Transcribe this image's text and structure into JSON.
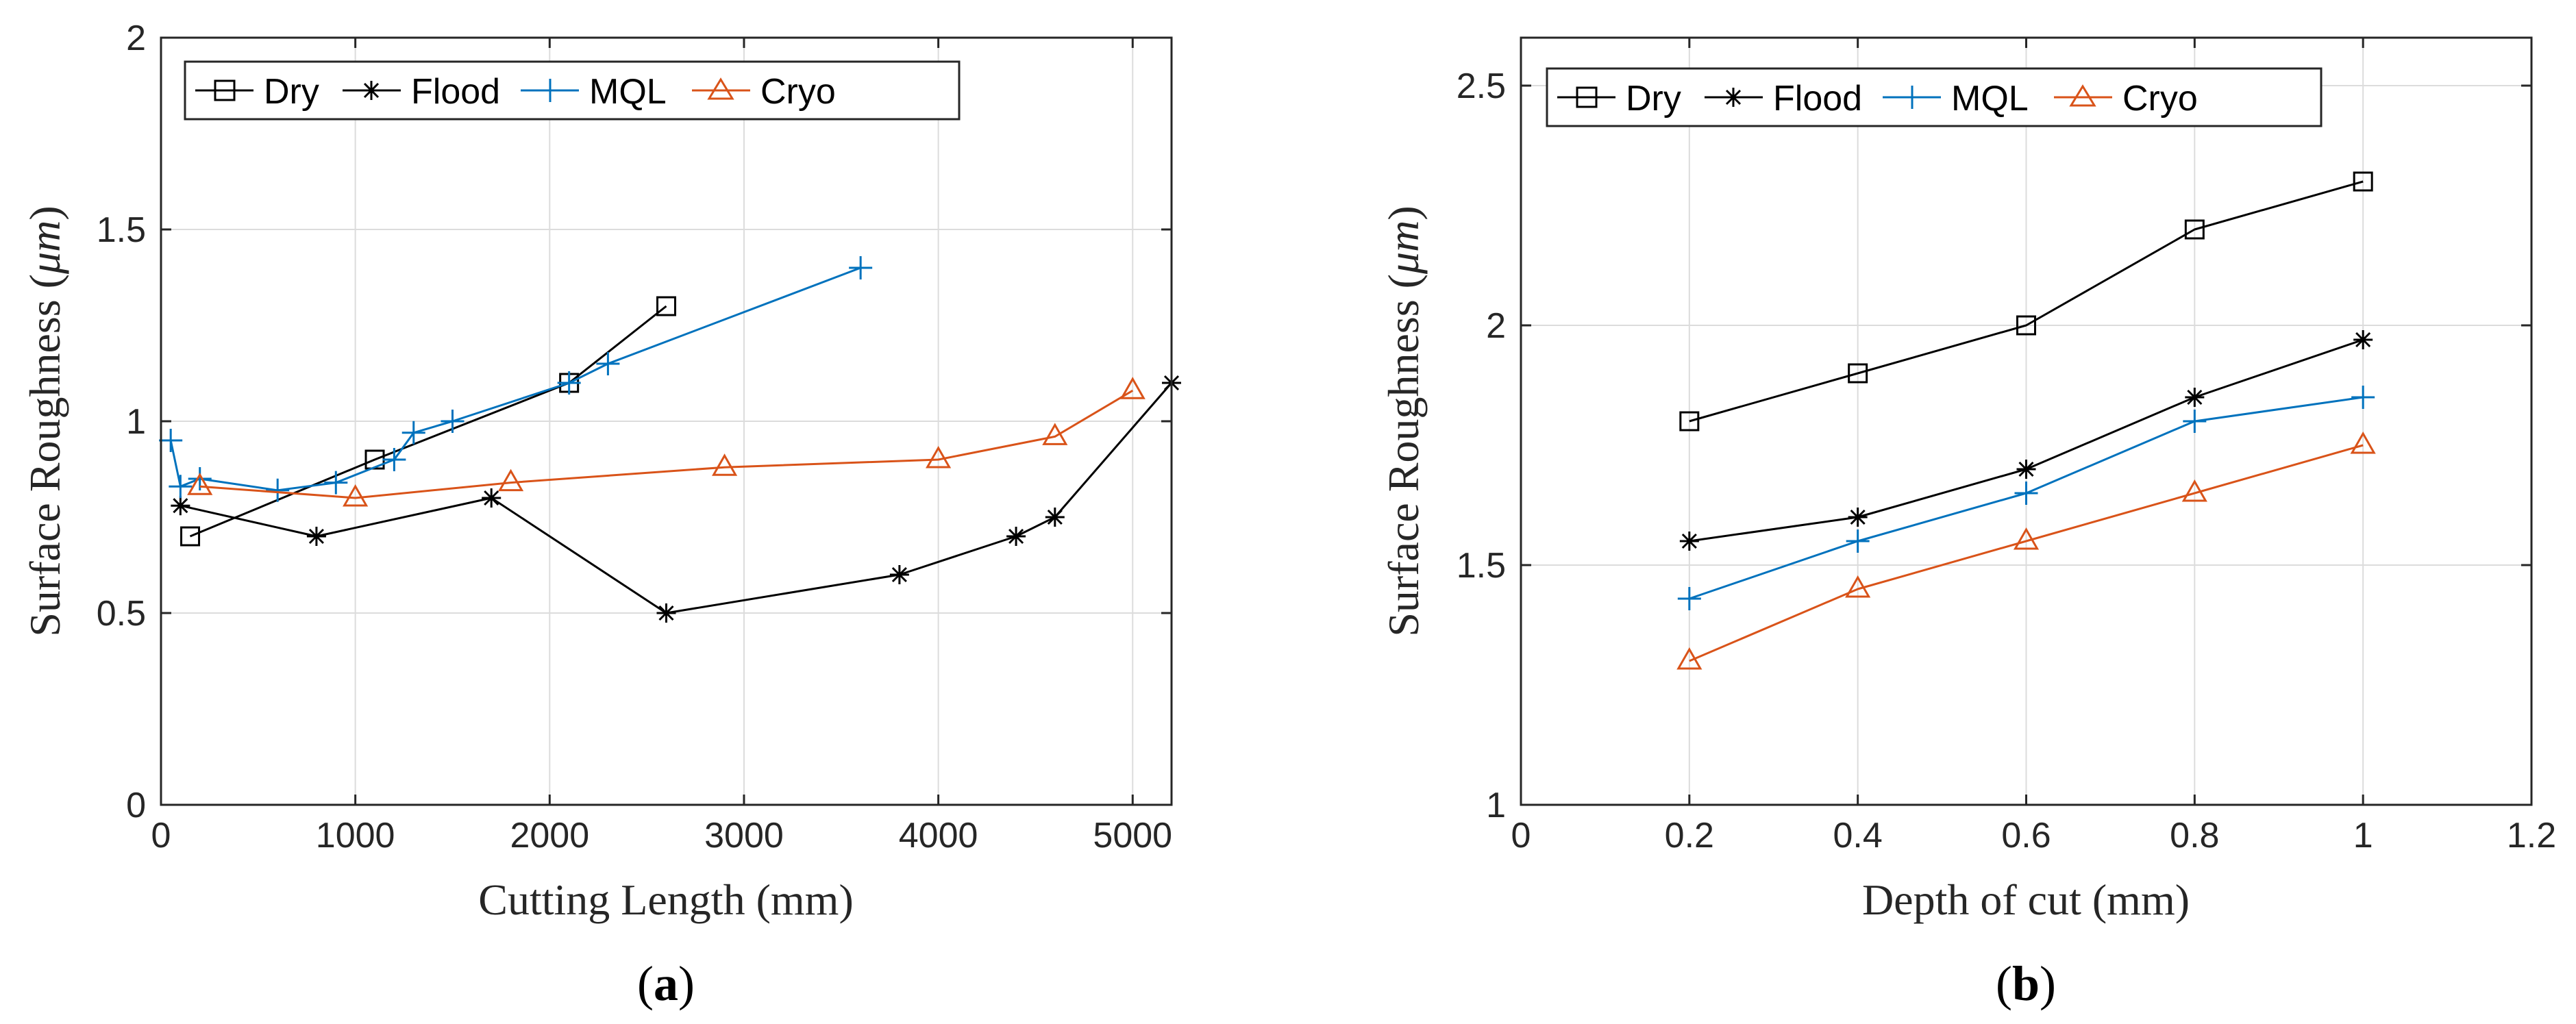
{
  "colors": {
    "black": "#000000",
    "blue": "#0072BD",
    "orange": "#D95319",
    "grid": "#dcdcdc",
    "axis": "#262626"
  },
  "chart_data": [
    {
      "type": "line",
      "panel": "(a)",
      "panel_letter": "a",
      "xlabel": "Cutting Length (mm)",
      "ylabel_prefix": "Surface Roughness (",
      "ylabel_unit": "μm",
      "ylabel_suffix": ")",
      "xlim": [
        0,
        5200
      ],
      "ylim": [
        0,
        2
      ],
      "xticks": [
        0,
        1000,
        2000,
        3000,
        4000,
        5000
      ],
      "yticks": [
        0,
        0.5,
        1,
        1.5,
        2
      ],
      "xtick_labels": [
        "0",
        "1000",
        "2000",
        "3000",
        "4000",
        "5000"
      ],
      "ytick_labels": [
        "0",
        "0.5",
        "1",
        "1.5",
        "2"
      ],
      "grid": true,
      "legend": "top-left, horizontal",
      "series": [
        {
          "name": "Dry",
          "marker": "square",
          "color": "#000000",
          "x": [
            150,
            1100,
            2100,
            2600
          ],
          "y": [
            0.7,
            0.9,
            1.1,
            1.3
          ]
        },
        {
          "name": "Flood",
          "marker": "asterisk",
          "color": "#000000",
          "x": [
            100,
            800,
            1700,
            2600,
            3800,
            4400,
            4600,
            5200
          ],
          "y": [
            0.78,
            0.7,
            0.8,
            0.5,
            0.6,
            0.7,
            0.75,
            1.1
          ]
        },
        {
          "name": "MQL",
          "marker": "plus",
          "color": "#0072BD",
          "x": [
            50,
            100,
            200,
            600,
            900,
            1200,
            1300,
            1500,
            2100,
            2300,
            3600
          ],
          "y": [
            0.95,
            0.83,
            0.85,
            0.82,
            0.84,
            0.9,
            0.97,
            1.0,
            1.1,
            1.15,
            1.4
          ]
        },
        {
          "name": "Cryo",
          "marker": "triangle",
          "color": "#D95319",
          "x": [
            200,
            1000,
            1800,
            2900,
            4000,
            4600,
            5000
          ],
          "y": [
            0.83,
            0.8,
            0.84,
            0.88,
            0.9,
            0.96,
            1.08
          ]
        }
      ]
    },
    {
      "type": "line",
      "panel": "(b)",
      "panel_letter": "b",
      "xlabel": "Depth of cut (mm)",
      "ylabel_prefix": "Surface Roughness (",
      "ylabel_unit": "μm",
      "ylabel_suffix": ")",
      "xlim": [
        0,
        1.2
      ],
      "ylim": [
        1,
        2.6
      ],
      "xticks": [
        0,
        0.2,
        0.4,
        0.6,
        0.8,
        1,
        1.2
      ],
      "yticks": [
        1,
        1.5,
        2,
        2.5
      ],
      "xtick_labels": [
        "0",
        "0.2",
        "0.4",
        "0.6",
        "0.8",
        "1",
        "1.2"
      ],
      "ytick_labels": [
        "1",
        "1.5",
        "2",
        "2.5"
      ],
      "grid": true,
      "legend": "top-left, horizontal",
      "series": [
        {
          "name": "Dry",
          "marker": "square",
          "color": "#000000",
          "x": [
            0.2,
            0.4,
            0.6,
            0.8,
            1.0
          ],
          "y": [
            1.8,
            1.9,
            2.0,
            2.2,
            2.3
          ]
        },
        {
          "name": "Flood",
          "marker": "asterisk",
          "color": "#000000",
          "x": [
            0.2,
            0.4,
            0.6,
            0.8,
            1.0
          ],
          "y": [
            1.55,
            1.6,
            1.7,
            1.85,
            1.97
          ]
        },
        {
          "name": "MQL",
          "marker": "plus",
          "color": "#0072BD",
          "x": [
            0.2,
            0.4,
            0.6,
            0.8,
            1.0
          ],
          "y": [
            1.43,
            1.55,
            1.65,
            1.8,
            1.85
          ]
        },
        {
          "name": "Cryo",
          "marker": "triangle",
          "color": "#D95319",
          "x": [
            0.2,
            0.4,
            0.6,
            0.8,
            1.0
          ],
          "y": [
            1.3,
            1.45,
            1.55,
            1.65,
            1.75
          ]
        }
      ]
    }
  ]
}
